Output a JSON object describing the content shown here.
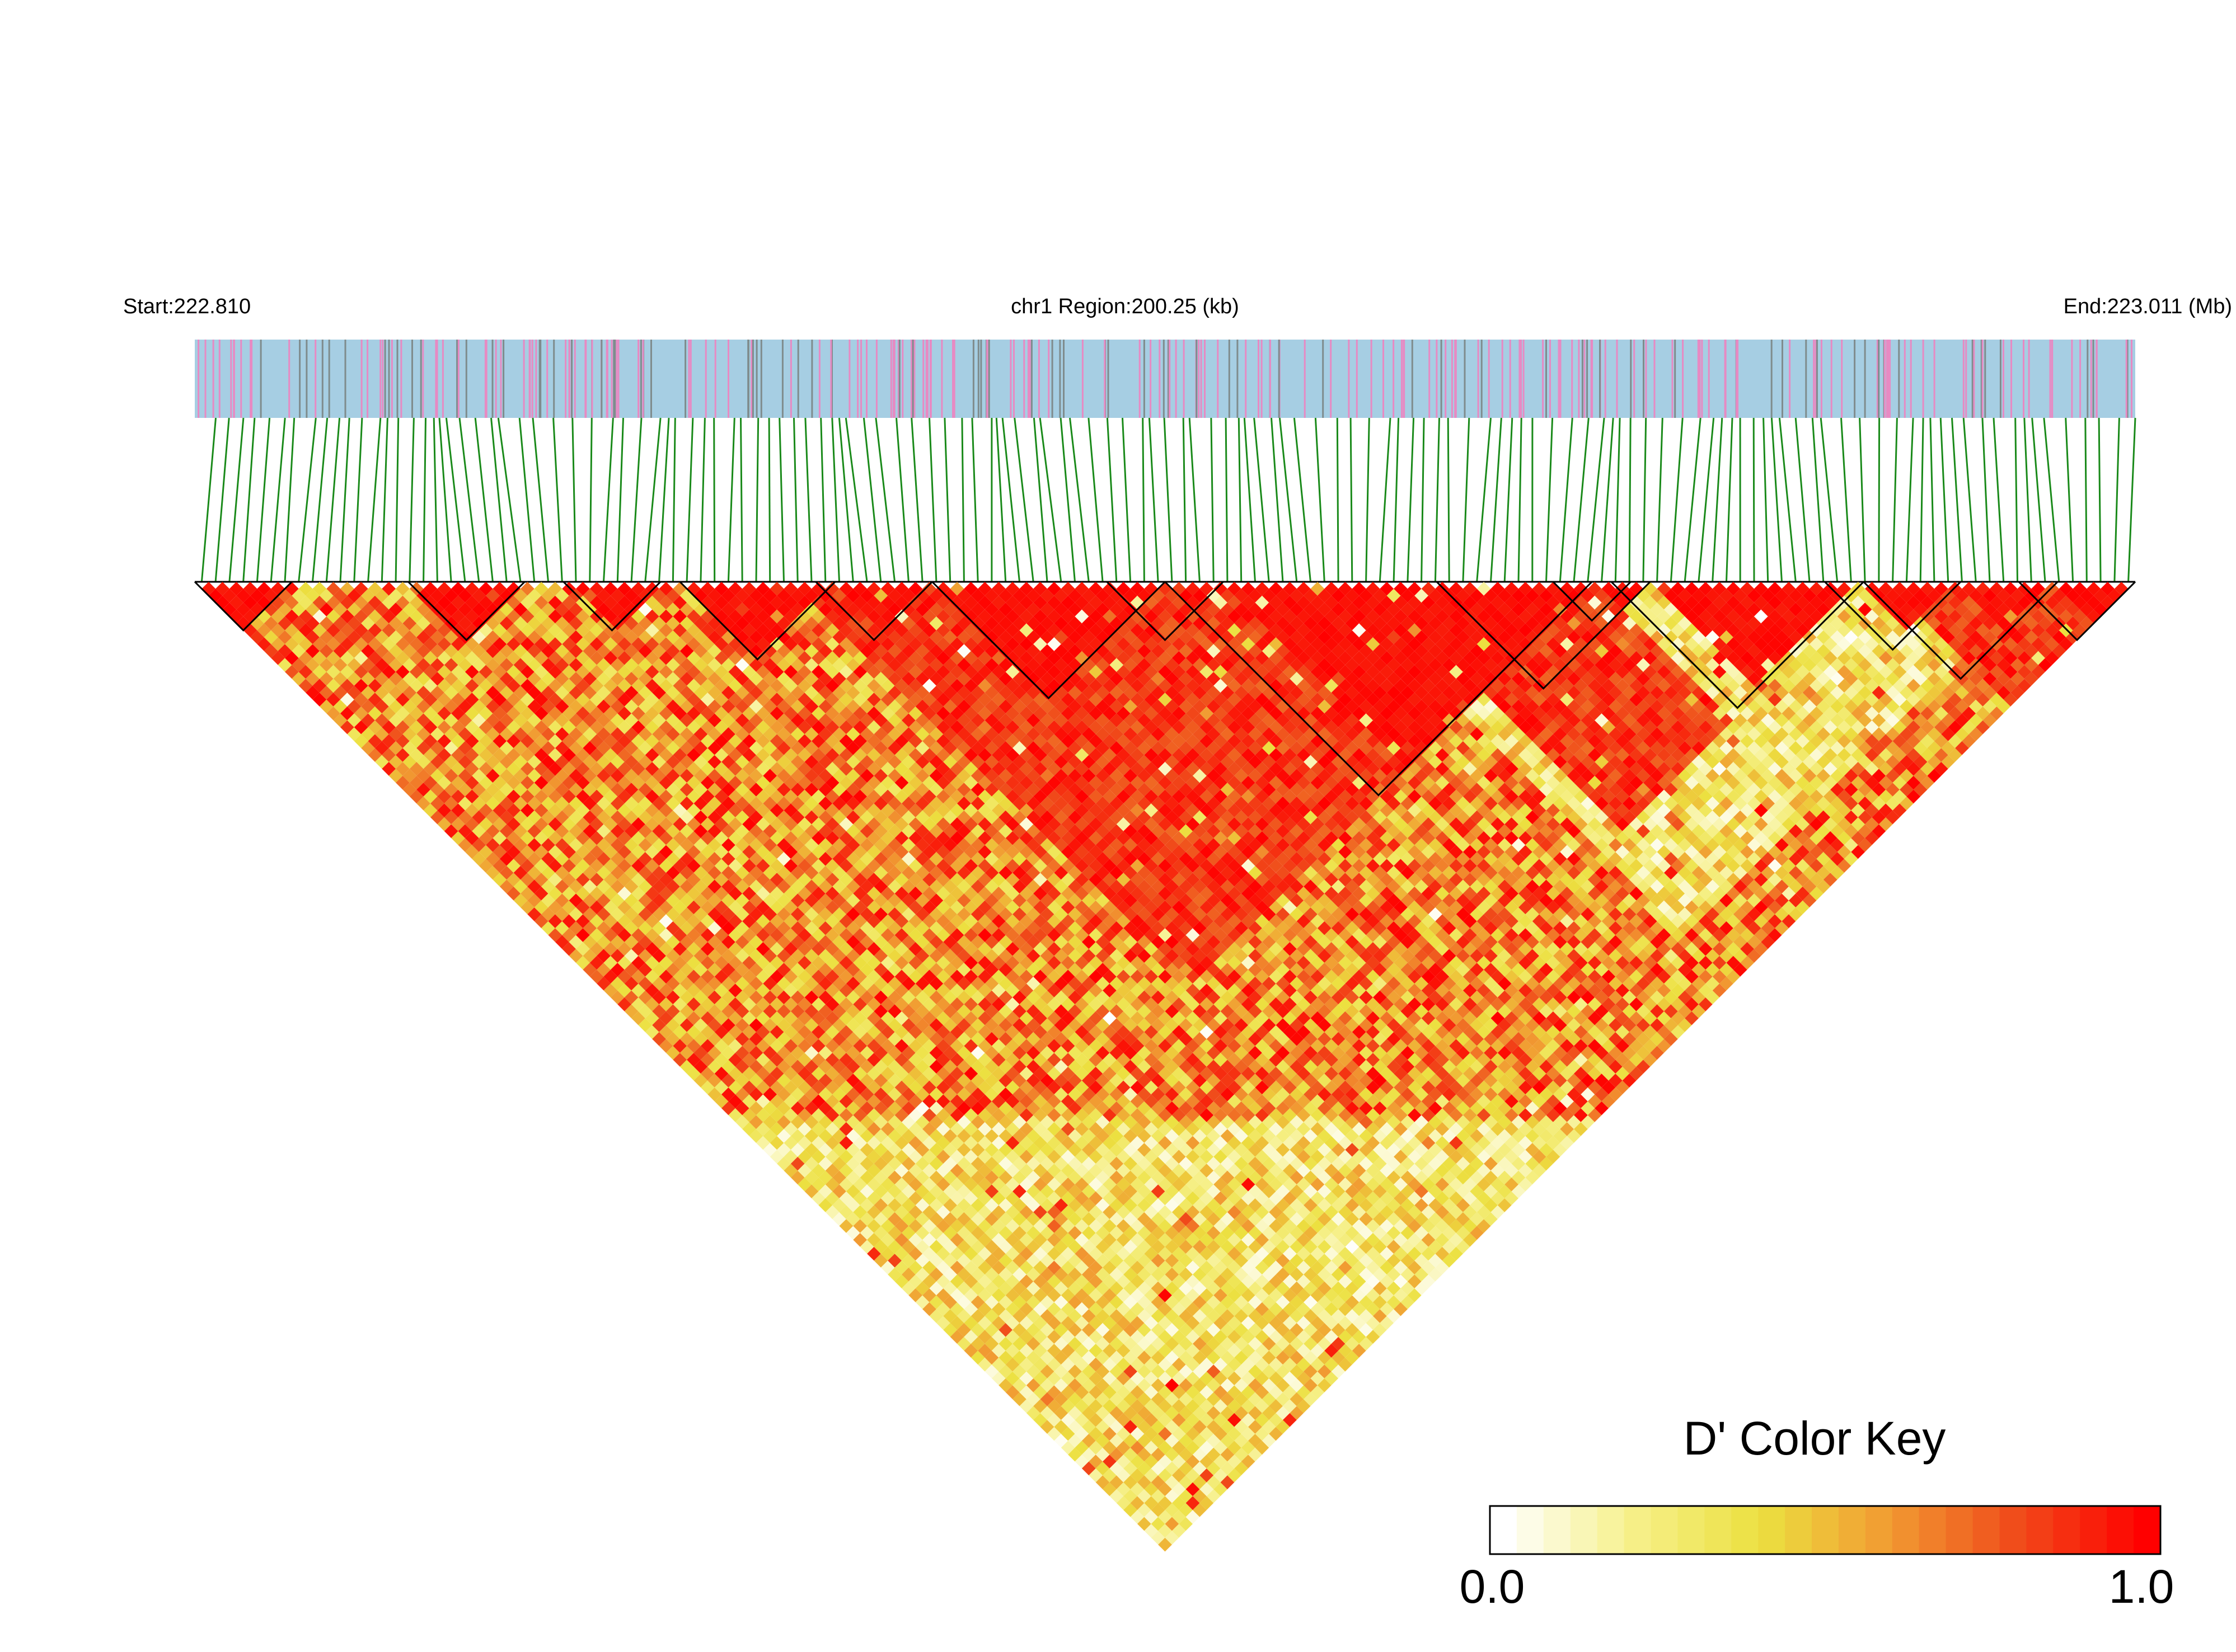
{
  "header": {
    "start_label": "Start:222.810",
    "region_label": "chr1 Region:200.25 (kb)",
    "end_label": "End:223.011 (Mb)"
  },
  "chart_data": {
    "type": "heatmap",
    "subtype": "linkage-disequilibrium triangle",
    "chromosome": "chr1",
    "start_mb": 222.81,
    "end_mb": 223.011,
    "region_kb": 200.25,
    "measure": "D'",
    "snp_track_colors": {
      "background": "#a6cee3",
      "snp_pink": "#e78ac3",
      "snp_gray": "#7f8c8d"
    },
    "connector_color": "#1a8a1a",
    "block_outline_color": "#000000",
    "blocks_approx": [
      {
        "from": 0.0,
        "to": 0.05
      },
      {
        "from": 0.11,
        "to": 0.17
      },
      {
        "from": 0.19,
        "to": 0.24
      },
      {
        "from": 0.25,
        "to": 0.33
      },
      {
        "from": 0.32,
        "to": 0.38
      },
      {
        "from": 0.38,
        "to": 0.5
      },
      {
        "from": 0.47,
        "to": 0.53
      },
      {
        "from": 0.5,
        "to": 0.72
      },
      {
        "from": 0.64,
        "to": 0.75
      },
      {
        "from": 0.7,
        "to": 0.74
      },
      {
        "from": 0.73,
        "to": 0.86
      },
      {
        "from": 0.84,
        "to": 0.91
      },
      {
        "from": 0.86,
        "to": 0.96
      },
      {
        "from": 0.94,
        "to": 1.0
      }
    ],
    "color_key": {
      "title": "D' Color Key",
      "min_label": "0.0",
      "max_label": "1.0",
      "min": 0.0,
      "max": 1.0,
      "colors": [
        "#ffffff",
        "#f6f08a",
        "#ece040",
        "#f19a32",
        "#f04a1a",
        "#ff0000"
      ]
    }
  }
}
